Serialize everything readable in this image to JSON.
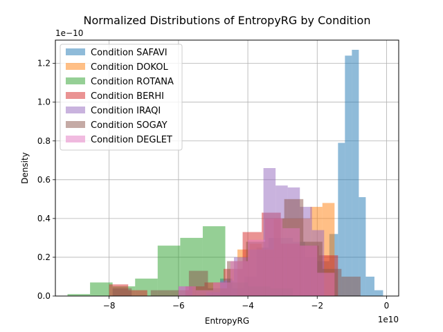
{
  "chart_data": {
    "type": "histogram",
    "title": "Normalized Distributions of EntropyRG by Condition",
    "xlabel": "EntropyRG",
    "ylabel": "Density",
    "x_scale_label": "1e10",
    "y_scale_label": "1e−10",
    "xlim": [
      -9.55,
      0.35
    ],
    "ylim": [
      0,
      1.32
    ],
    "x_ticks": [
      -8,
      -6,
      -4,
      -2,
      0
    ],
    "x_tick_labels": [
      "−8",
      "−6",
      "−4",
      "−2",
      "0"
    ],
    "y_ticks": [
      0,
      0.2,
      0.4,
      0.6,
      0.8,
      1.0,
      1.2
    ],
    "y_tick_labels": [
      "0.0",
      "0.2",
      "0.4",
      "0.6",
      "0.8",
      "1.0",
      "1.2"
    ],
    "grid": true,
    "legend_position": "upper left",
    "series": [
      {
        "name": "Condition SAFAVI",
        "color": "#1f77b4",
        "edges": [
          -4.8,
          -4.45,
          -4.1,
          -3.75,
          -3.4,
          -3.05,
          -2.7,
          -2.35,
          -2.0,
          -1.65,
          -1.4,
          -1.2,
          -1.0,
          -0.8,
          -0.6,
          -0.35,
          -0.1
        ],
        "values": [
          0.09,
          0.04,
          0.1,
          0.25,
          0.3,
          0.3,
          0.28,
          0.2,
          0.18,
          0.32,
          0.79,
          1.24,
          1.27,
          0.51,
          0.1,
          0.03
        ]
      },
      {
        "name": "Condition DOKOL",
        "color": "#ff7f0e",
        "edges": [
          -4.3,
          -3.95,
          -3.6,
          -3.25,
          -2.9,
          -2.55,
          -2.2,
          -1.85,
          -1.5
        ],
        "values": [
          0.24,
          0.27,
          0.24,
          0.4,
          0.4,
          0.4,
          0.46,
          0.48
        ]
      },
      {
        "name": "Condition ROTANA",
        "color": "#2ca02c",
        "edges": [
          -9.2,
          -8.55,
          -7.9,
          -7.25,
          -6.6,
          -5.95,
          -5.3,
          -4.65,
          -4.0,
          -3.35,
          -2.7
        ],
        "values": [
          0.01,
          0.07,
          0.05,
          0.09,
          0.26,
          0.3,
          0.36,
          0.07,
          0.05,
          0.04
        ]
      },
      {
        "name": "Condition BERHI",
        "color": "#d62728",
        "edges": [
          -8.0,
          -7.45,
          -6.9,
          -6.35,
          -5.8,
          -5.25,
          -4.7,
          -4.15,
          -3.6,
          -3.05,
          -2.5,
          -1.95,
          -1.4
        ],
        "values": [
          0.06,
          0.03,
          0.0,
          0.0,
          0.05,
          0.07,
          0.14,
          0.33,
          0.43,
          0.27,
          0.26,
          0.21
        ]
      },
      {
        "name": "Condition IRAQI",
        "color": "#9467bd",
        "edges": [
          -6.0,
          -5.6,
          -5.2,
          -4.8,
          -4.4,
          -3.95,
          -3.55,
          -3.2,
          -2.85,
          -2.5,
          -2.15,
          -1.8
        ],
        "values": [
          0.05,
          0.0,
          0.02,
          0.08,
          0.2,
          0.24,
          0.66,
          0.57,
          0.56,
          0.46,
          0.34
        ]
      },
      {
        "name": "Condition SOGAY",
        "color": "#8c564b",
        "edges": [
          -7.9,
          -7.35,
          -6.8,
          -6.25,
          -5.7,
          -5.15,
          -4.6,
          -4.05,
          -3.5,
          -2.95,
          -2.4,
          -1.85,
          -1.3,
          -0.75
        ],
        "values": [
          0.04,
          0.0,
          0.03,
          0.03,
          0.13,
          0.04,
          0.18,
          0.28,
          0.4,
          0.5,
          0.28,
          0.14,
          0.1
        ]
      },
      {
        "name": "Condition DEGLET",
        "color": "#e377c2",
        "edges": [
          -6.0,
          -5.5,
          -5.0,
          -4.5,
          -4.0,
          -3.5,
          -3.0,
          -2.5,
          -2.0,
          -1.5
        ],
        "values": [
          0.05,
          0.03,
          0.07,
          0.18,
          0.29,
          0.4,
          0.35,
          0.26,
          0.12
        ]
      }
    ]
  }
}
